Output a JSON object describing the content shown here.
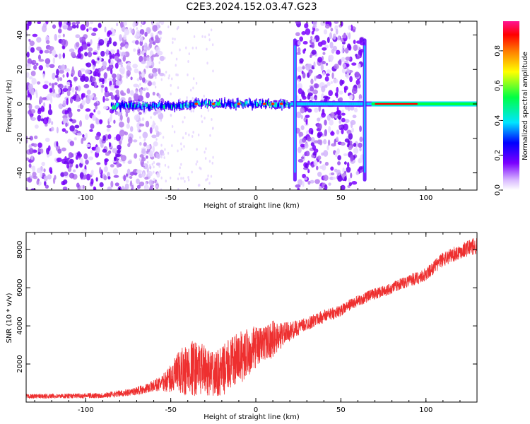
{
  "title": "C2E3.2024.152.03.47.G23",
  "chart_data": [
    {
      "type": "heatmap",
      "xlabel": "Height of straight line (km)",
      "ylabel": "Frequency (Hz)",
      "xlim": [
        -135,
        130
      ],
      "ylim": [
        -50,
        48
      ],
      "xticks": [
        -100,
        -50,
        0,
        50,
        100
      ],
      "yticks": [
        -40,
        -20,
        0,
        20,
        40
      ],
      "grid": false,
      "colorbar": {
        "label": "Normalized spectral amplitude",
        "range": [
          0,
          0.97
        ],
        "ticks": [
          0.0,
          0.2,
          0.4,
          0.6,
          0.8
        ],
        "colormap": "rainbow",
        "colors": [
          "#ffffff",
          "#b57cf0",
          "#7b00ff",
          "#0000ff",
          "#00e5ff",
          "#00ff44",
          "#ffff00",
          "#ff7f00",
          "#ff0000",
          "#ff1493"
        ]
      },
      "features": {
        "noise_regions_km": [
          [
            -135,
            -55
          ],
          [
            24,
            63
          ]
        ],
        "signal_band": {
          "x_start": -85,
          "x_end": 130,
          "frequency_hz": 0
        },
        "edge_spikes_km": [
          23,
          64
        ]
      }
    },
    {
      "type": "line",
      "xlabel": "Height of straight line (km)",
      "ylabel": "SNR (10 * v/v)",
      "xlim": [
        -135,
        130
      ],
      "ylim": [
        0,
        8900
      ],
      "xticks": [
        -100,
        -50,
        0,
        50,
        100
      ],
      "yticks": [
        2000,
        4000,
        6000,
        8000
      ],
      "grid": false,
      "series": [
        {
          "color": "#ee3030",
          "x": [
            -135,
            -110,
            -90,
            -75,
            -65,
            -55,
            -45,
            -38,
            -30,
            -25,
            -20,
            -15,
            -10,
            -5,
            0,
            5,
            10,
            15,
            20,
            25,
            30,
            35,
            40,
            50,
            55,
            60,
            65,
            70,
            75,
            80,
            85,
            90,
            95,
            100,
            105,
            110,
            115,
            120,
            125,
            130
          ],
          "values": [
            300,
            320,
            350,
            500,
            700,
            1000,
            1500,
            1800,
            1700,
            1400,
            1600,
            2000,
            2300,
            2600,
            2900,
            3100,
            3300,
            3500,
            3700,
            3900,
            4100,
            4300,
            4500,
            4800,
            5100,
            5300,
            5500,
            5700,
            5800,
            6000,
            6200,
            6400,
            6500,
            6700,
            7100,
            7500,
            7700,
            7900,
            8100,
            8200
          ],
          "noise_amplitude": [
            120,
            120,
            150,
            180,
            250,
            400,
            1200,
            1500,
            1300,
            1200,
            1300,
            1400,
            1400,
            1300,
            1100,
            900,
            1000,
            700,
            500,
            400,
            350,
            350,
            350,
            300,
            300,
            300,
            300,
            300,
            300,
            300,
            300,
            350,
            350,
            350,
            350,
            400,
            400,
            400,
            450,
            450
          ]
        }
      ]
    }
  ]
}
